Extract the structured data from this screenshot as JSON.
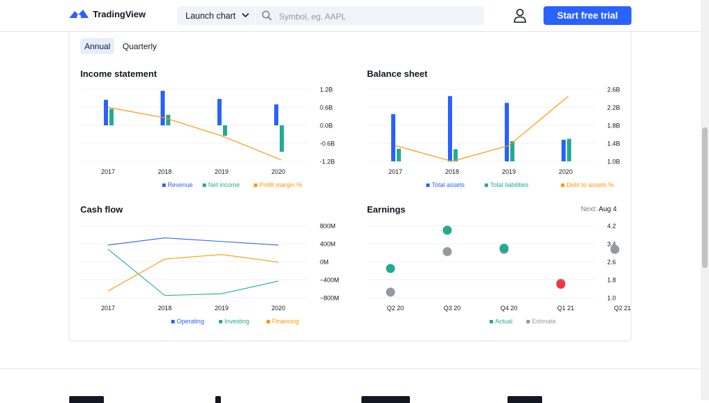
{
  "header": {
    "logo_text": "TradingView",
    "launch_label": "Launch chart",
    "search_placeholder": "Symbol, eg. AAPL",
    "cta_label": "Start free trial"
  },
  "tabs": [
    {
      "label": "Annual",
      "active": true
    },
    {
      "label": "Quarterly",
      "active": false
    }
  ],
  "colors": {
    "blue": "#2962ff",
    "teal": "#22ab94",
    "orange": "#ff9800",
    "green_dot": "#089981",
    "red_dot": "#f23645",
    "grey_dot": "#9598a1"
  },
  "chart_data": [
    {
      "id": "income",
      "type": "bar",
      "title": "Income statement",
      "categories": [
        "2017",
        "2018",
        "2019",
        "2020"
      ],
      "y_ticks": [
        "1.2B",
        "0.6B",
        "0.0B",
        "-0.6B",
        "-1.2B"
      ],
      "ylim": [
        -1.2,
        1.2
      ],
      "series": [
        {
          "name": "Revenue",
          "type": "bar",
          "values": [
            0.85,
            1.15,
            0.88,
            0.7
          ]
        },
        {
          "name": "Net income",
          "type": "bar",
          "values": [
            0.55,
            0.35,
            -0.35,
            -0.88
          ]
        },
        {
          "name": "Profit margin %",
          "type": "line",
          "values": [
            0.6,
            0.25,
            -0.35,
            -1.15
          ]
        }
      ]
    },
    {
      "id": "balance",
      "type": "bar",
      "title": "Balance sheet",
      "categories": [
        "2017",
        "2018",
        "2019",
        "2020"
      ],
      "y_ticks": [
        "2.6B",
        "2.2B",
        "1.8B",
        "1.4B",
        "1.0B"
      ],
      "ylim": [
        1.0,
        2.6
      ],
      "series": [
        {
          "name": "Total assets",
          "type": "bar",
          "values": [
            2.05,
            2.45,
            2.3,
            1.48
          ]
        },
        {
          "name": "Total liabilities",
          "type": "bar",
          "values": [
            1.28,
            1.27,
            1.45,
            1.5
          ]
        },
        {
          "name": "Debt to assets %",
          "type": "line",
          "values": [
            1.35,
            1.0,
            1.35,
            2.45
          ]
        }
      ]
    },
    {
      "id": "cashflow",
      "type": "line",
      "title": "Cash flow",
      "categories": [
        "2017",
        "2018",
        "2019",
        "2020"
      ],
      "y_ticks": [
        "800M",
        "400M",
        "0M",
        "−400M",
        "−800M"
      ],
      "ylim": [
        -800,
        800
      ],
      "series": [
        {
          "name": "Operating",
          "values": [
            370,
            530,
            450,
            370
          ]
        },
        {
          "name": "Investing",
          "values": [
            280,
            -750,
            -710,
            -430
          ]
        },
        {
          "name": "Financing",
          "values": [
            -650,
            60,
            160,
            -10
          ]
        }
      ]
    },
    {
      "id": "earnings",
      "type": "scatter",
      "title": "Earnings",
      "next_label": "Next:",
      "next_value": "Aug 4",
      "categories": [
        "Q2 20",
        "Q3 20",
        "Q4 20",
        "Q1 21",
        "Q2 21"
      ],
      "y_ticks": [
        "4.2",
        "3.4",
        "2.6",
        "1.8",
        "1.0"
      ],
      "ylim": [
        1.0,
        4.2
      ],
      "series": [
        {
          "name": "Actual",
          "values": [
            2.3,
            4.0,
            3.2,
            1.6,
            null
          ]
        },
        {
          "name": "Estimate",
          "values": [
            1.25,
            3.05,
            3.15,
            1.65,
            3.15
          ]
        }
      ],
      "point_status": [
        "beat",
        "beat",
        "beat",
        "miss",
        null
      ]
    }
  ]
}
